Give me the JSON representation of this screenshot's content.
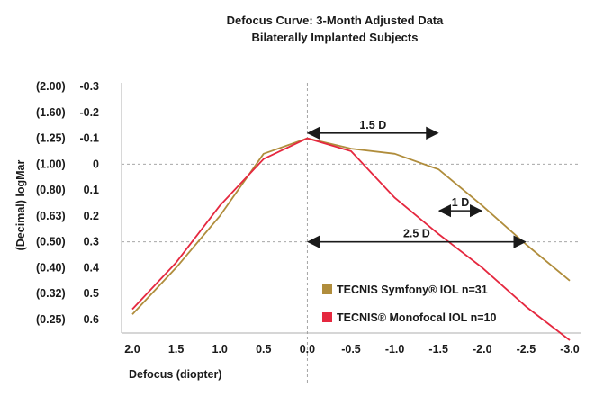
{
  "chart_data": {
    "type": "line",
    "title": "Defocus Curve: 3-Month Adjusted Data",
    "subtitle": "Bilaterally Implanted Subjects",
    "xlabel": "Defocus (diopter)",
    "ylabel": "(Decimal) logMar",
    "xlim": [
      2.0,
      -3.0
    ],
    "ylim": [
      0.6,
      -0.3
    ],
    "x_ticks": [
      "2.0",
      "1.5",
      "1.0",
      "0.5",
      "0.0",
      "-0.5",
      "-1.0",
      "-1.5",
      "-2.0",
      "-2.5",
      "-3.0"
    ],
    "x_tick_values": [
      2.0,
      1.5,
      1.0,
      0.5,
      0.0,
      -0.5,
      -1.0,
      -1.5,
      -2.0,
      -2.5,
      -3.0
    ],
    "y_ticks": [
      "(2.00) -0.3",
      "(1.60) -0.2",
      "(1.25) -0.1",
      "(1.00)   0",
      "(0.80)  0.1",
      "(0.63)  0.2",
      "(0.50)  0.3",
      "(0.40)  0.4",
      "(0.32)  0.5",
      "(0.25)  0.6"
    ],
    "y_tick_values": [
      -0.3,
      -0.2,
      -0.1,
      0.0,
      0.1,
      0.2,
      0.3,
      0.4,
      0.5,
      0.6
    ],
    "reference_lines_y": [
      0.0,
      0.3
    ],
    "reference_line_x": 0.0,
    "legend_position": "bottom-right",
    "series": [
      {
        "name": "TECNIS Symfony® IOL n=31",
        "color": "#b08d3c",
        "x": [
          2.0,
          1.5,
          1.0,
          0.5,
          0.0,
          -0.5,
          -1.0,
          -1.5,
          -2.0,
          -2.5,
          -3.0
        ],
        "y": [
          0.58,
          0.4,
          0.2,
          -0.04,
          -0.1,
          -0.06,
          -0.04,
          0.02,
          0.16,
          0.31,
          0.45
        ]
      },
      {
        "name": "TECNIS® Monofocal IOL n=10",
        "color": "#e5283f",
        "x": [
          2.0,
          1.5,
          1.0,
          0.5,
          0.0,
          -0.5,
          -1.0,
          -1.5,
          -2.0,
          -2.5,
          -3.0
        ],
        "y": [
          0.56,
          0.38,
          0.16,
          -0.02,
          -0.1,
          -0.05,
          0.13,
          0.27,
          0.4,
          0.55,
          0.68
        ]
      }
    ],
    "annotations": [
      {
        "label": "1.5 D",
        "from": 0.0,
        "to": -1.5,
        "y": -0.12
      },
      {
        "label": "1 D",
        "from": -1.5,
        "to": -2.0,
        "y": 0.18
      },
      {
        "label": "2.5 D",
        "from": 0.0,
        "to": -2.5,
        "y": 0.3
      }
    ]
  }
}
